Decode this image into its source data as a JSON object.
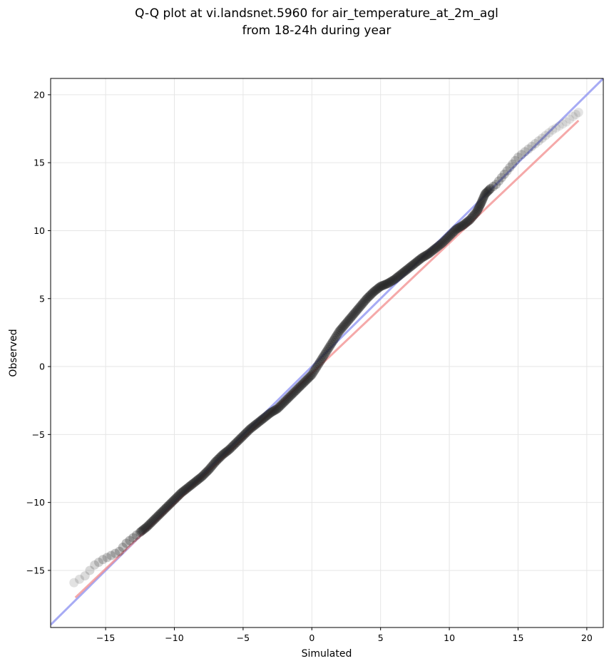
{
  "chart_data": {
    "type": "scatter",
    "title": [
      "Q-Q plot at vi.landsnet.5960 for air_temperature_at_2m_agl",
      "from 18-24h during year"
    ],
    "xlabel": "Simulated",
    "ylabel": "Observed",
    "xlim": [
      -19.0,
      21.2
    ],
    "ylim": [
      -19.2,
      21.2
    ],
    "xticks": [
      -15,
      -10,
      -5,
      0,
      5,
      10,
      15,
      20
    ],
    "yticks": [
      -15,
      -10,
      -5,
      0,
      5,
      10,
      15,
      20
    ],
    "xtick_labels": [
      "−15",
      "−10",
      "−5",
      "0",
      "5",
      "10",
      "15",
      "20"
    ],
    "ytick_labels": [
      "−15",
      "−10",
      "−5",
      "0",
      "5",
      "10",
      "15",
      "20"
    ],
    "grid": true,
    "colors": {
      "points": "#222222",
      "one_to_one_line": "#8a8ff0",
      "fit_line": "#f28c8c"
    },
    "one_to_one_line": {
      "x": [
        -19.0,
        21.2
      ],
      "y": [
        -19.0,
        21.2
      ]
    },
    "fit_line": {
      "x": [
        -17.2,
        19.4
      ],
      "y": [
        -17.0,
        18.1
      ]
    },
    "quantile_curve": {
      "x": [
        -17.3,
        -16.5,
        -15.8,
        -15.2,
        -14.6,
        -14.0,
        -13.5,
        -13.0,
        -12.5,
        -12.0,
        -11.5,
        -11.0,
        -10.5,
        -10.0,
        -9.5,
        -9.0,
        -8.5,
        -8.0,
        -7.5,
        -7.0,
        -6.5,
        -6.0,
        -5.5,
        -5.0,
        -4.5,
        -4.0,
        -3.5,
        -3.0,
        -2.5,
        -2.0,
        -1.5,
        -1.0,
        -0.5,
        0.0,
        0.5,
        1.0,
        1.5,
        2.0,
        2.5,
        3.0,
        3.5,
        4.0,
        4.5,
        5.0,
        5.5,
        6.0,
        6.5,
        7.0,
        7.5,
        8.0,
        8.5,
        9.0,
        9.5,
        10.0,
        10.5,
        11.0,
        11.5,
        12.0,
        12.3,
        12.6,
        13.0,
        13.4,
        13.8,
        14.2,
        14.6,
        15.0,
        15.5,
        16.0,
        16.5,
        17.0,
        17.5,
        18.0,
        18.5,
        19.0,
        19.4
      ],
      "y": [
        -15.9,
        -15.4,
        -14.6,
        -14.2,
        -13.9,
        -13.6,
        -13.0,
        -12.6,
        -12.2,
        -11.8,
        -11.3,
        -10.8,
        -10.3,
        -9.8,
        -9.3,
        -8.9,
        -8.5,
        -8.1,
        -7.6,
        -7.0,
        -6.5,
        -6.1,
        -5.6,
        -5.1,
        -4.6,
        -4.2,
        -3.8,
        -3.4,
        -3.1,
        -2.6,
        -2.1,
        -1.6,
        -1.1,
        -0.6,
        0.2,
        1.0,
        1.8,
        2.6,
        3.2,
        3.8,
        4.4,
        5.0,
        5.5,
        5.9,
        6.1,
        6.4,
        6.8,
        7.2,
        7.6,
        8.0,
        8.3,
        8.7,
        9.1,
        9.6,
        10.1,
        10.4,
        10.8,
        11.4,
        12.0,
        12.7,
        13.1,
        13.4,
        13.9,
        14.4,
        14.9,
        15.4,
        15.8,
        16.2,
        16.6,
        17.0,
        17.4,
        17.7,
        18.0,
        18.4,
        18.7
      ]
    }
  }
}
